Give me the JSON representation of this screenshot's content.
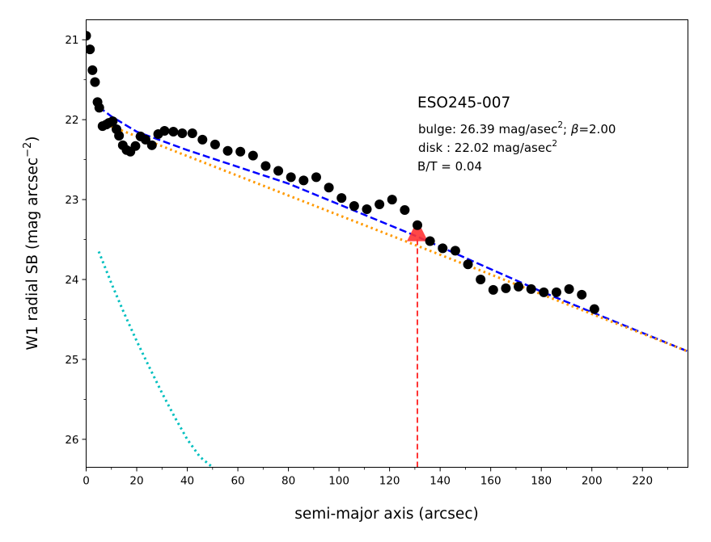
{
  "chart_data": {
    "type": "scatter",
    "xlabel": "semi-major axis (arcsec)",
    "ylabel": "W1 radial SB (mag arcsec",
    "ylabel_sup": "−2",
    "ylabel_close": ")",
    "xlim": [
      0,
      238
    ],
    "ylim": [
      26.35,
      20.75
    ],
    "y_inverted": true,
    "x_ticks": [
      0,
      20,
      40,
      60,
      80,
      100,
      120,
      140,
      160,
      180,
      200,
      220
    ],
    "y_ticks": [
      21,
      22,
      23,
      24,
      25,
      26
    ],
    "x_minor_step": 10,
    "y_minor_step": 0.5,
    "grid": false,
    "annotation": {
      "galaxy": "ESO245-007",
      "bulge_prefix": "bulge: 26.39 mag/asec",
      "bulge_sup": "2",
      "bulge_mid": "; ",
      "bulge_beta": "β",
      "bulge_suffix": "=2.00",
      "disk_prefix": "disk  : 22.02 mag/asec",
      "disk_sup": "2",
      "bt": "B/T = 0.04"
    },
    "series": [
      {
        "kind": "points",
        "color": "#000000",
        "x": [
          0.0,
          1.5,
          2.5,
          3.5,
          4.5,
          5.2,
          6.5,
          8.0,
          9.0,
          10.5,
          12.0,
          13.0,
          14.5,
          16.0,
          17.5,
          19.5,
          21.5,
          23.5,
          26.0,
          28.5,
          31.0,
          34.5,
          38.0,
          42.0,
          46.0,
          51.0,
          56.0,
          61.0,
          66.0,
          71.0,
          76.0,
          81.0,
          86.0,
          91.0,
          96.0,
          101.0,
          106.0,
          111.0,
          116.0,
          121.0,
          126.0,
          131.0,
          136.0,
          141.0,
          146.0,
          151.0,
          156.0,
          161.0,
          166.0,
          171.0,
          176.0,
          181.0,
          186.0,
          191.0,
          196.0,
          201.0
        ],
        "y": [
          20.95,
          21.12,
          21.38,
          21.53,
          21.78,
          21.85,
          22.08,
          22.06,
          22.04,
          22.02,
          22.12,
          22.2,
          22.32,
          22.38,
          22.4,
          22.33,
          22.21,
          22.25,
          22.32,
          22.18,
          22.14,
          22.15,
          22.17,
          22.17,
          22.25,
          22.31,
          22.39,
          22.4,
          22.45,
          22.58,
          22.64,
          22.72,
          22.76,
          22.72,
          22.85,
          22.98,
          23.08,
          23.12,
          23.06,
          23.0,
          23.13,
          23.32,
          23.52,
          23.61,
          23.64,
          23.81,
          24.0,
          24.13,
          24.11,
          24.09,
          24.12,
          24.16,
          24.16,
          24.12,
          24.19,
          24.37
        ]
      },
      {
        "kind": "dashed-line",
        "name": "total fit",
        "color": "#0000ff",
        "x": [
          5,
          10,
          20,
          40,
          80,
          130,
          180,
          238
        ],
        "y": [
          21.84,
          21.96,
          22.15,
          22.38,
          22.8,
          23.45,
          24.15,
          24.9
        ]
      },
      {
        "kind": "dotted-line",
        "name": "disk",
        "color": "#ff9900",
        "x": [
          8,
          238
        ],
        "y": [
          22.06,
          24.9
        ]
      },
      {
        "kind": "dotted-line",
        "name": "bulge",
        "color": "#00bfbf",
        "x": [
          5,
          10,
          15,
          20,
          25,
          30,
          35,
          40,
          45,
          50
        ],
        "y": [
          23.65,
          24.05,
          24.42,
          24.77,
          25.1,
          25.42,
          25.72,
          26.0,
          26.22,
          26.35
        ]
      },
      {
        "kind": "vertical-dashed-line",
        "color": "#ff3333",
        "x": 131,
        "y_top": 23.5
      },
      {
        "kind": "triangle-marker",
        "color": "#ff3333",
        "x": 131,
        "y": 23.4
      }
    ]
  }
}
